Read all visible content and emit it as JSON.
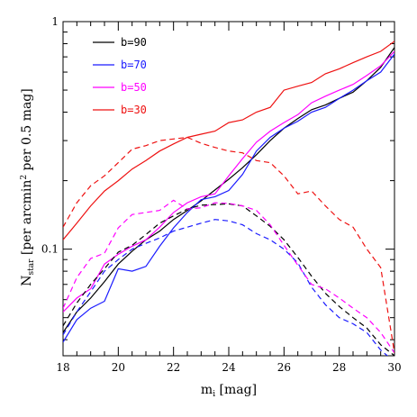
{
  "chart_data": {
    "type": "line",
    "xlabel": {
      "main": "m",
      "sub": "i",
      "unit": " [mag]"
    },
    "ylabel": {
      "main": "N",
      "sub": "star",
      "unit_pre": "  [per arcmin",
      "sup": "2",
      "unit_post": " per 0.5 mag]"
    },
    "xlim": [
      18,
      30
    ],
    "ylim": [
      0.034,
      1.0
    ],
    "yscale": "log",
    "x_ticks": [
      18,
      20,
      22,
      24,
      26,
      28,
      30
    ],
    "y_tick_labels": [
      {
        "value": 0.1,
        "label": "0.1"
      },
      {
        "value": 1,
        "label": "1"
      }
    ],
    "x": [
      18,
      18.5,
      19,
      19.5,
      20,
      20.5,
      21,
      21.5,
      22,
      22.5,
      23,
      23.5,
      24,
      24.5,
      25,
      25.5,
      26,
      26.5,
      27,
      27.5,
      28,
      28.5,
      29,
      29.5,
      30
    ],
    "series": [
      {
        "name": "b=90",
        "color": "#000000",
        "style": "solid",
        "values": [
          0.043,
          0.053,
          0.061,
          0.072,
          0.086,
          0.098,
          0.11,
          0.12,
          0.135,
          0.148,
          0.163,
          0.182,
          0.203,
          0.228,
          0.26,
          0.3,
          0.34,
          0.375,
          0.41,
          0.43,
          0.46,
          0.49,
          0.55,
          0.63,
          0.77
        ]
      },
      {
        "name": "b=70",
        "color": "#1a1aff",
        "style": "solid",
        "values": [
          0.039,
          0.049,
          0.055,
          0.059,
          0.082,
          0.08,
          0.084,
          0.103,
          0.124,
          0.145,
          0.165,
          0.17,
          0.181,
          0.213,
          0.27,
          0.31,
          0.34,
          0.365,
          0.4,
          0.42,
          0.46,
          0.5,
          0.55,
          0.6,
          0.72
        ]
      },
      {
        "name": "b=50",
        "color": "#ff00ff",
        "style": "solid",
        "values": [
          0.053,
          0.061,
          0.067,
          0.086,
          0.095,
          0.103,
          0.11,
          0.125,
          0.145,
          0.16,
          0.17,
          0.175,
          0.21,
          0.25,
          0.295,
          0.33,
          0.36,
          0.39,
          0.44,
          0.47,
          0.5,
          0.53,
          0.58,
          0.64,
          0.74
        ]
      },
      {
        "name": "b=30",
        "color": "#ee1111",
        "style": "solid",
        "values": [
          0.11,
          0.13,
          0.155,
          0.18,
          0.2,
          0.225,
          0.245,
          0.27,
          0.29,
          0.31,
          0.32,
          0.33,
          0.36,
          0.37,
          0.4,
          0.42,
          0.5,
          0.52,
          0.54,
          0.59,
          0.62,
          0.66,
          0.7,
          0.74,
          0.82
        ]
      },
      {
        "color": "#000000",
        "style": "dashed",
        "values": [
          0.046,
          0.058,
          0.07,
          0.082,
          0.097,
          0.104,
          0.116,
          0.13,
          0.14,
          0.15,
          0.156,
          0.157,
          0.158,
          0.155,
          0.14,
          0.126,
          0.11,
          0.092,
          0.076,
          0.064,
          0.056,
          0.05,
          0.045,
          0.038,
          0.034
        ]
      },
      {
        "color": "#1a1aff",
        "style": "dashed",
        "values": [
          0.042,
          0.053,
          0.065,
          0.08,
          0.09,
          0.1,
          0.106,
          0.112,
          0.12,
          0.125,
          0.13,
          0.135,
          0.133,
          0.128,
          0.117,
          0.11,
          0.1,
          0.087,
          0.068,
          0.057,
          0.05,
          0.047,
          0.043,
          0.036,
          0.032
        ]
      },
      {
        "color": "#ff00ff",
        "style": "dashed",
        "values": [
          0.055,
          0.075,
          0.091,
          0.096,
          0.124,
          0.142,
          0.145,
          0.148,
          0.164,
          0.15,
          0.152,
          0.16,
          0.159,
          0.155,
          0.148,
          0.128,
          0.104,
          0.085,
          0.07,
          0.067,
          0.061,
          0.055,
          0.05,
          0.043,
          0.035
        ]
      },
      {
        "color": "#ee1111",
        "style": "dashed",
        "values": [
          0.125,
          0.16,
          0.19,
          0.21,
          0.24,
          0.275,
          0.285,
          0.3,
          0.305,
          0.31,
          0.292,
          0.28,
          0.27,
          0.265,
          0.245,
          0.24,
          0.21,
          0.175,
          0.18,
          0.155,
          0.135,
          0.125,
          0.1,
          0.083,
          0.035
        ]
      }
    ]
  }
}
